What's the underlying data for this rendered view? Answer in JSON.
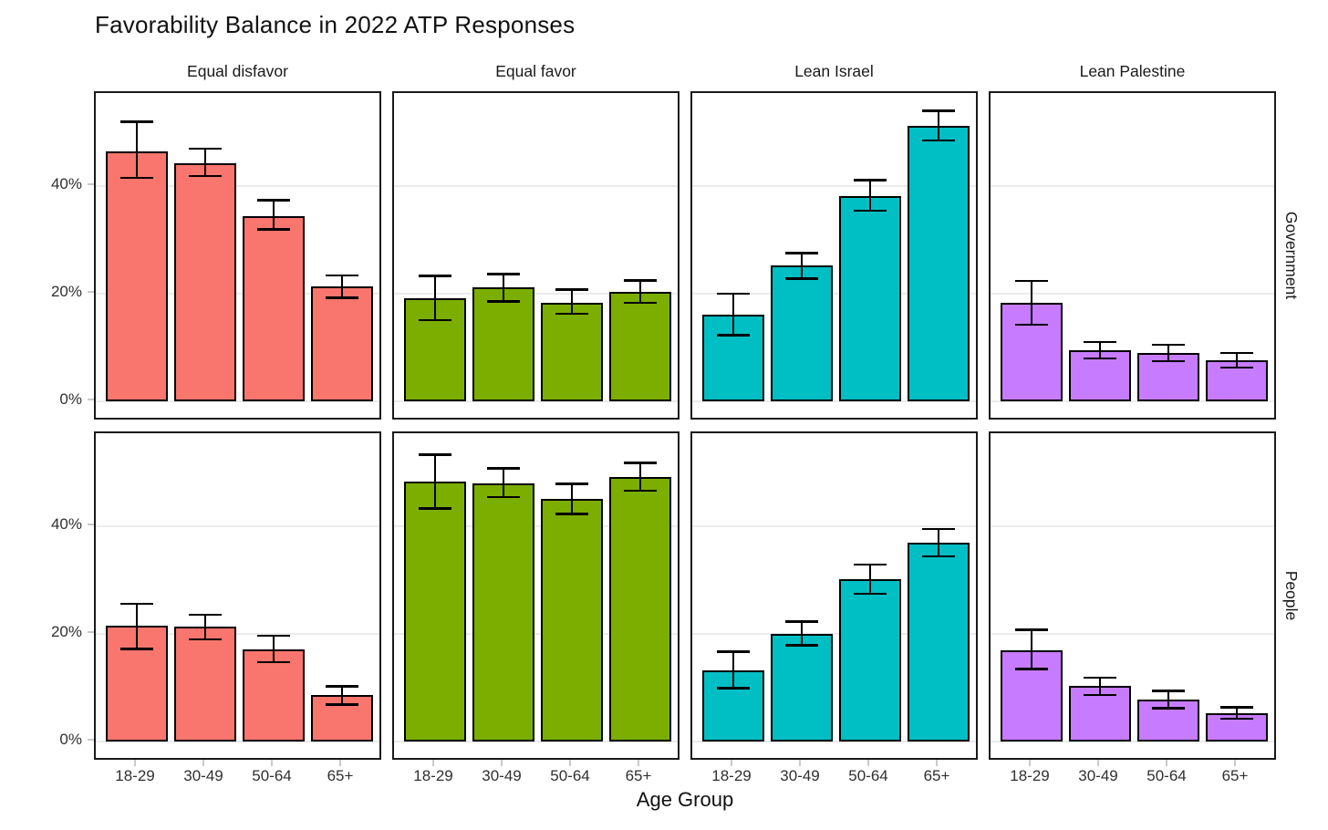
{
  "title": "Favorability Balance in 2022 ATP Responses",
  "x_axis_title": "Age Group",
  "facet_columns": [
    "Equal disfavor",
    "Equal favor",
    "Lean Israel",
    "Lean Palestine"
  ],
  "facet_rows": [
    "Government",
    "People"
  ],
  "age_groups": [
    "18-29",
    "30-49",
    "50-64",
    "65+"
  ],
  "colors": {
    "equal_disfavor": "#F8766D",
    "equal_favor": "#7CAE00",
    "lean_israel": "#00BFC4",
    "lean_palestine": "#C77CFF",
    "bar_outline": "#000000",
    "panel_border": "#1a1a1a",
    "gridline": "#ebebeb"
  },
  "chart_data": {
    "type": "bar",
    "faceted": true,
    "title": "Favorability Balance in 2022 ATP Responses",
    "xlabel": "Age Group",
    "ylabel": "",
    "grid": "major-horizontal",
    "legend_position": "none",
    "x_categories": [
      "18-29",
      "30-49",
      "50-64",
      "65+"
    ],
    "y_axis": {
      "ticks": [
        0,
        20,
        40
      ],
      "tick_labels": [
        "0%",
        "20%",
        "40%"
      ],
      "ylim": [
        -3.7,
        57.3
      ]
    },
    "error_bars": true,
    "panels": [
      {
        "row": "Government",
        "col": "Equal disfavor",
        "color": "#F8766D",
        "values": [
          46.5,
          44.3,
          34.5,
          21.4
        ],
        "err_low": [
          41.5,
          41.9,
          32.0,
          19.3
        ],
        "err_high": [
          52.0,
          47.0,
          37.4,
          23.4
        ]
      },
      {
        "row": "Government",
        "col": "Equal favor",
        "color": "#7CAE00",
        "values": [
          19.2,
          21.2,
          18.4,
          20.4
        ],
        "err_low": [
          15.1,
          18.6,
          16.3,
          18.3
        ],
        "err_high": [
          23.3,
          23.7,
          20.8,
          22.5
        ]
      },
      {
        "row": "Government",
        "col": "Lean Israel",
        "color": "#00BFC4",
        "values": [
          16.1,
          25.2,
          38.2,
          51.2
        ],
        "err_low": [
          12.3,
          22.8,
          35.4,
          48.5
        ],
        "err_high": [
          20.0,
          27.6,
          41.1,
          54.0
        ]
      },
      {
        "row": "Government",
        "col": "Lean Palestine",
        "color": "#C77CFF",
        "values": [
          18.4,
          9.5,
          9.0,
          7.6
        ],
        "err_low": [
          14.3,
          8.0,
          7.5,
          6.3
        ],
        "err_high": [
          22.4,
          11.0,
          10.5,
          9.0
        ]
      },
      {
        "row": "People",
        "col": "Equal disfavor",
        "color": "#F8766D",
        "values": [
          21.5,
          21.4,
          17.2,
          8.7
        ],
        "err_low": [
          17.2,
          19.0,
          14.8,
          6.9
        ],
        "err_high": [
          25.6,
          23.6,
          19.7,
          10.3
        ]
      },
      {
        "row": "People",
        "col": "Equal favor",
        "color": "#7CAE00",
        "values": [
          48.3,
          48.0,
          45.1,
          49.2
        ],
        "err_low": [
          43.3,
          45.4,
          42.3,
          46.6
        ],
        "err_high": [
          53.3,
          50.8,
          47.9,
          51.8
        ]
      },
      {
        "row": "People",
        "col": "Lean Israel",
        "color": "#00BFC4",
        "values": [
          13.3,
          20.1,
          30.2,
          37.0
        ],
        "err_low": [
          9.9,
          17.9,
          27.5,
          34.4
        ],
        "err_high": [
          16.7,
          22.3,
          32.9,
          39.5
        ]
      },
      {
        "row": "People",
        "col": "Lean Palestine",
        "color": "#C77CFF",
        "values": [
          17.0,
          10.3,
          7.8,
          5.3
        ],
        "err_low": [
          13.5,
          8.7,
          6.2,
          4.3
        ],
        "err_high": [
          20.8,
          11.9,
          9.4,
          6.4
        ]
      }
    ]
  }
}
